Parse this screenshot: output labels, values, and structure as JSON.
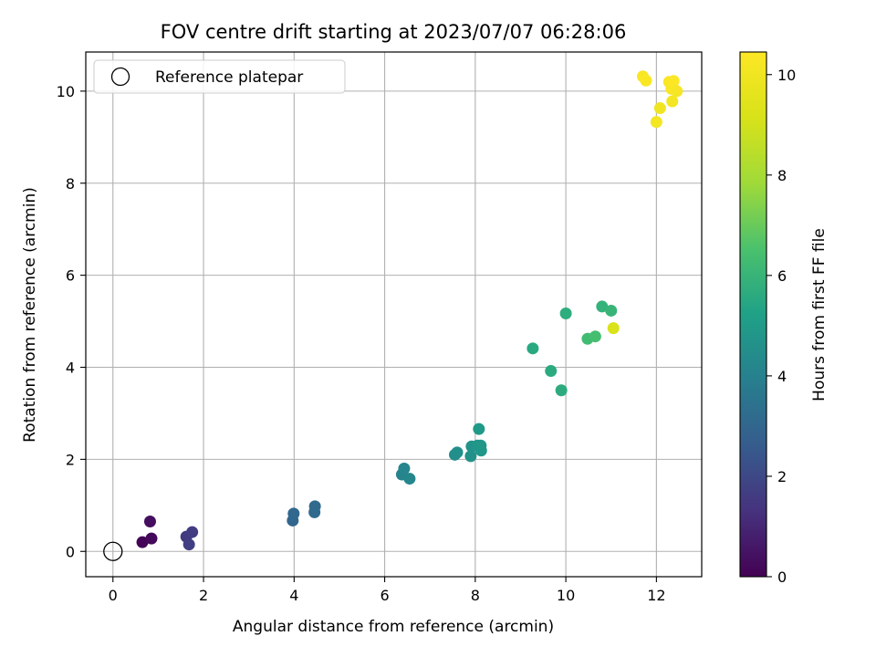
{
  "chart_data": {
    "type": "scatter",
    "title": "FOV centre drift starting at 2023/07/07 06:28:06",
    "xlabel": "Angular distance from reference (arcmin)",
    "ylabel": "Rotation from reference (arcmin)",
    "xlim": [
      -0.6,
      13.0
    ],
    "ylim": [
      -0.55,
      10.85
    ],
    "xticks": [
      0,
      2,
      4,
      6,
      8,
      10,
      12
    ],
    "yticks": [
      0,
      2,
      4,
      6,
      8,
      10
    ],
    "grid": true,
    "legend": {
      "placement": "top-left",
      "entries": [
        "Reference platepar"
      ]
    },
    "reference_point": {
      "x": 0,
      "y": 0
    },
    "colorbar": {
      "label": "Hours from first FF file",
      "range": [
        0,
        10.45
      ],
      "ticks": [
        0,
        2,
        4,
        6,
        8,
        10
      ],
      "colormap": "viridis"
    },
    "points": [
      {
        "x": 0.65,
        "y": 0.2,
        "h": 0.05
      },
      {
        "x": 0.85,
        "y": 0.28,
        "h": 0.2
      },
      {
        "x": 0.82,
        "y": 0.65,
        "h": 0.35
      },
      {
        "x": 1.62,
        "y": 0.32,
        "h": 1.6
      },
      {
        "x": 1.75,
        "y": 0.42,
        "h": 1.65
      },
      {
        "x": 1.68,
        "y": 0.15,
        "h": 1.7
      },
      {
        "x": 3.97,
        "y": 0.67,
        "h": 3.0
      },
      {
        "x": 3.99,
        "y": 0.82,
        "h": 3.05
      },
      {
        "x": 4.45,
        "y": 0.85,
        "h": 3.1
      },
      {
        "x": 4.46,
        "y": 0.98,
        "h": 3.15
      },
      {
        "x": 6.38,
        "y": 1.67,
        "h": 4.1
      },
      {
        "x": 6.43,
        "y": 1.8,
        "h": 4.15
      },
      {
        "x": 6.55,
        "y": 1.58,
        "h": 4.2
      },
      {
        "x": 7.55,
        "y": 2.1,
        "h": 4.5
      },
      {
        "x": 7.6,
        "y": 2.15,
        "h": 4.55
      },
      {
        "x": 7.9,
        "y": 2.07,
        "h": 4.6
      },
      {
        "x": 7.92,
        "y": 2.28,
        "h": 4.7
      },
      {
        "x": 8.05,
        "y": 2.3,
        "h": 4.75
      },
      {
        "x": 8.12,
        "y": 2.3,
        "h": 4.8
      },
      {
        "x": 8.13,
        "y": 2.19,
        "h": 4.85
      },
      {
        "x": 8.08,
        "y": 2.66,
        "h": 4.9
      },
      {
        "x": 9.27,
        "y": 4.41,
        "h": 5.55
      },
      {
        "x": 9.67,
        "y": 3.92,
        "h": 5.6
      },
      {
        "x": 9.9,
        "y": 3.5,
        "h": 5.65
      },
      {
        "x": 10.0,
        "y": 5.17,
        "h": 5.7
      },
      {
        "x": 10.48,
        "y": 4.62,
        "h": 6.3
      },
      {
        "x": 10.65,
        "y": 4.67,
        "h": 6.4
      },
      {
        "x": 10.8,
        "y": 5.32,
        "h": 5.9
      },
      {
        "x": 11.0,
        "y": 5.23,
        "h": 6.0
      },
      {
        "x": 11.05,
        "y": 4.85,
        "h": 9.2
      },
      {
        "x": 11.7,
        "y": 10.32,
        "h": 10.3
      },
      {
        "x": 11.77,
        "y": 10.23,
        "h": 10.35
      },
      {
        "x": 12.0,
        "y": 9.33,
        "h": 10.1
      },
      {
        "x": 12.08,
        "y": 9.63,
        "h": 10.0
      },
      {
        "x": 12.28,
        "y": 10.2,
        "h": 10.3
      },
      {
        "x": 12.33,
        "y": 10.05,
        "h": 10.35
      },
      {
        "x": 12.38,
        "y": 10.22,
        "h": 10.4
      },
      {
        "x": 12.45,
        "y": 10.0,
        "h": 10.2
      },
      {
        "x": 12.35,
        "y": 9.78,
        "h": 10.1
      }
    ]
  }
}
